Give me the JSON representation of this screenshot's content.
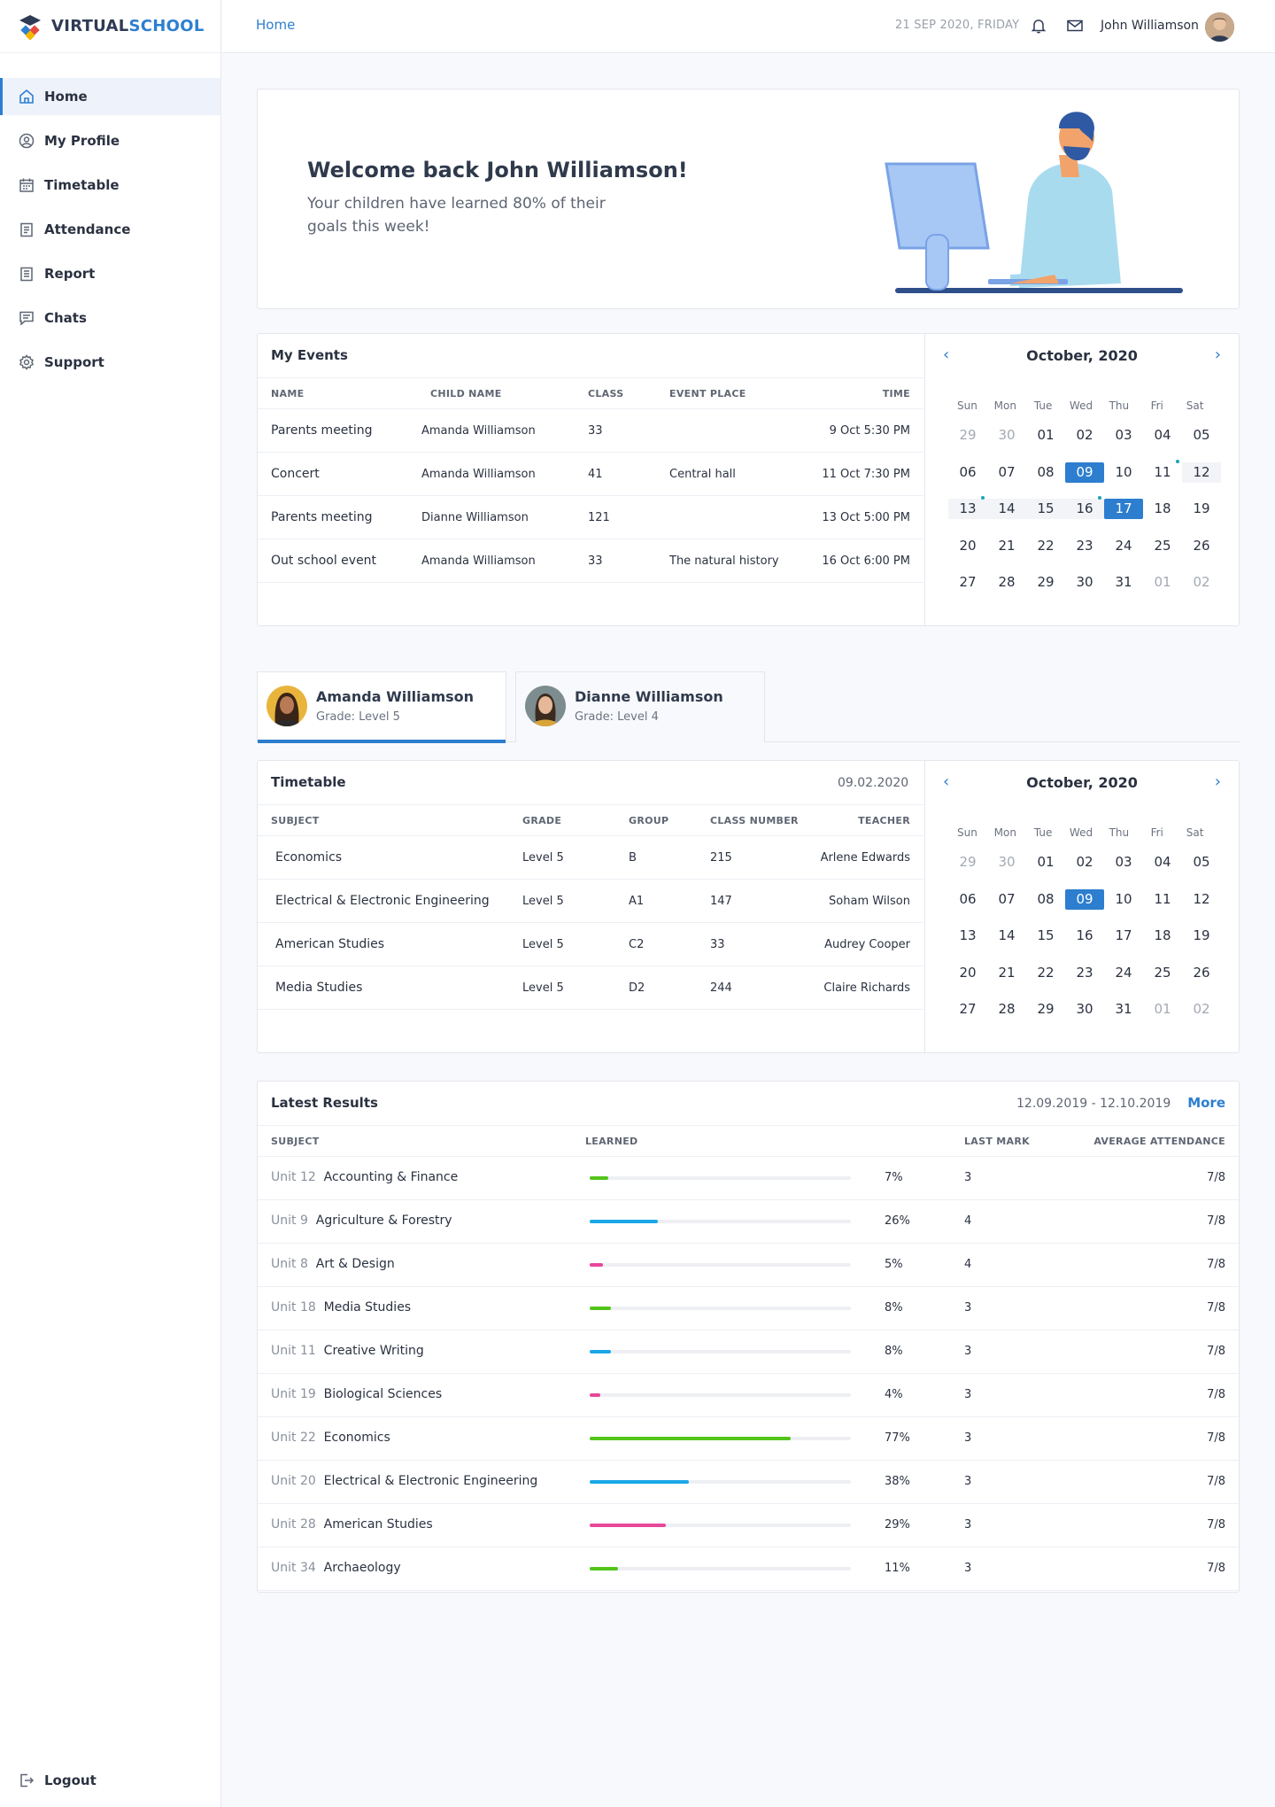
{
  "app": {
    "brand_a": "VIRTUAL",
    "brand_b": "SCHOOL"
  },
  "sidebar": {
    "items": [
      {
        "label": "Home",
        "icon": "home-icon"
      },
      {
        "label": "My Profile",
        "icon": "user-circle-icon"
      },
      {
        "label": "Timetable",
        "icon": "calendar-icon"
      },
      {
        "label": "Attendance",
        "icon": "clipboard-icon"
      },
      {
        "label": "Report",
        "icon": "report-icon"
      },
      {
        "label": "Chats",
        "icon": "chat-icon"
      },
      {
        "label": "Support",
        "icon": "gear-icon"
      }
    ],
    "logout": "Logout"
  },
  "topbar": {
    "breadcrumb": "Home",
    "date": "21 SEP 2020, FRIDAY",
    "user": "John Williamson"
  },
  "welcome": {
    "title": "Welcome back John Williamson!",
    "subtitle": "Your children have learned 80% of their goals this week!"
  },
  "events": {
    "title": "My Events",
    "headers": [
      "NAME",
      "CHILD NAME",
      "CLASS",
      "EVENT PLACE",
      "TIME"
    ],
    "rows": [
      [
        "Parents meeting",
        "Amanda Williamson",
        "33",
        "",
        "9 Oct 5:30 PM"
      ],
      [
        "Concert",
        "Amanda Williamson",
        "41",
        "Central hall",
        "11 Oct 7:30 PM"
      ],
      [
        "Parents meeting",
        "Dianne Williamson",
        "121",
        "",
        "13 Oct 5:00 PM"
      ],
      [
        "Out school event",
        "Amanda Williamson",
        "33",
        "The natural history",
        "16 Oct 6:00 PM"
      ]
    ]
  },
  "calendar": {
    "month": "October, 2020",
    "dow": [
      "Sun",
      "Mon",
      "Tue",
      "Wed",
      "Thu",
      "Fri",
      "Sat"
    ],
    "weeks": [
      [
        "29",
        "30",
        "01",
        "02",
        "03",
        "04",
        "05"
      ],
      [
        "06",
        "07",
        "08",
        "09",
        "10",
        "11",
        "12"
      ],
      [
        "13",
        "14",
        "15",
        "16",
        "17",
        "18",
        "19"
      ],
      [
        "20",
        "21",
        "22",
        "23",
        "24",
        "25",
        "26"
      ],
      [
        "27",
        "28",
        "29",
        "30",
        "31",
        "01",
        "02"
      ]
    ]
  },
  "children": [
    {
      "name": "Amanda Williamson",
      "grade": "Grade: Level 5"
    },
    {
      "name": "Dianne Williamson",
      "grade": "Grade: Level 4"
    }
  ],
  "timetable": {
    "title": "Timetable",
    "date": "09.02.2020",
    "headers": [
      "SUBJECT",
      "GRADE",
      "GROUP",
      "CLASS NUMBER",
      "TEACHER"
    ],
    "rows": [
      [
        "Economics",
        "Level 5",
        "B",
        "215",
        "Arlene Edwards"
      ],
      [
        "Electrical & Electronic Engineering",
        "Level 5",
        "A1",
        "147",
        "Soham Wilson"
      ],
      [
        "American Studies",
        "Level 5",
        "C2",
        "33",
        "Audrey Cooper"
      ],
      [
        "Media Studies",
        "Level 5",
        "D2",
        "244",
        "Claire Richards"
      ]
    ]
  },
  "results": {
    "title": "Latest Results",
    "range": "12.09.2019 - 12.10.2019",
    "more": "More",
    "headers": [
      "SUBJECT",
      "LEARNED",
      "LAST MARK",
      "AVERAGE ATTENDANCE"
    ],
    "rows": [
      {
        "unit": "Unit 12",
        "subject": "Accounting & Finance",
        "learned": 7,
        "pct": "7%",
        "mark": "3",
        "att": "7/8",
        "color": "#52c41a"
      },
      {
        "unit": "Unit 9",
        "subject": "Agriculture & Forestry",
        "learned": 26,
        "pct": "26%",
        "mark": "4",
        "att": "7/8",
        "color": "#1aa7e8"
      },
      {
        "unit": "Unit 8",
        "subject": "Art & Design",
        "learned": 5,
        "pct": "5%",
        "mark": "4",
        "att": "7/8",
        "color": "#e8479a"
      },
      {
        "unit": "Unit 18",
        "subject": "Media Studies",
        "learned": 8,
        "pct": "8%",
        "mark": "3",
        "att": "7/8",
        "color": "#52c41a"
      },
      {
        "unit": "Unit 11",
        "subject": "Creative Writing",
        "learned": 8,
        "pct": "8%",
        "mark": "3",
        "att": "7/8",
        "color": "#1aa7e8"
      },
      {
        "unit": "Unit 19",
        "subject": "Biological Sciences",
        "learned": 4,
        "pct": "4%",
        "mark": "3",
        "att": "7/8",
        "color": "#e8479a"
      },
      {
        "unit": "Unit 22",
        "subject": "Economics",
        "learned": 77,
        "pct": "77%",
        "mark": "3",
        "att": "7/8",
        "color": "#52c41a"
      },
      {
        "unit": "Unit 20",
        "subject": "Electrical & Electronic Engineering",
        "learned": 38,
        "pct": "38%",
        "mark": "3",
        "att": "7/8",
        "color": "#1aa7e8"
      },
      {
        "unit": "Unit 28",
        "subject": "American Studies",
        "learned": 29,
        "pct": "29%",
        "mark": "3",
        "att": "7/8",
        "color": "#e8479a"
      },
      {
        "unit": "Unit 34",
        "subject": "Archaeology",
        "learned": 11,
        "pct": "11%",
        "mark": "3",
        "att": "7/8",
        "color": "#52c41a"
      }
    ]
  }
}
